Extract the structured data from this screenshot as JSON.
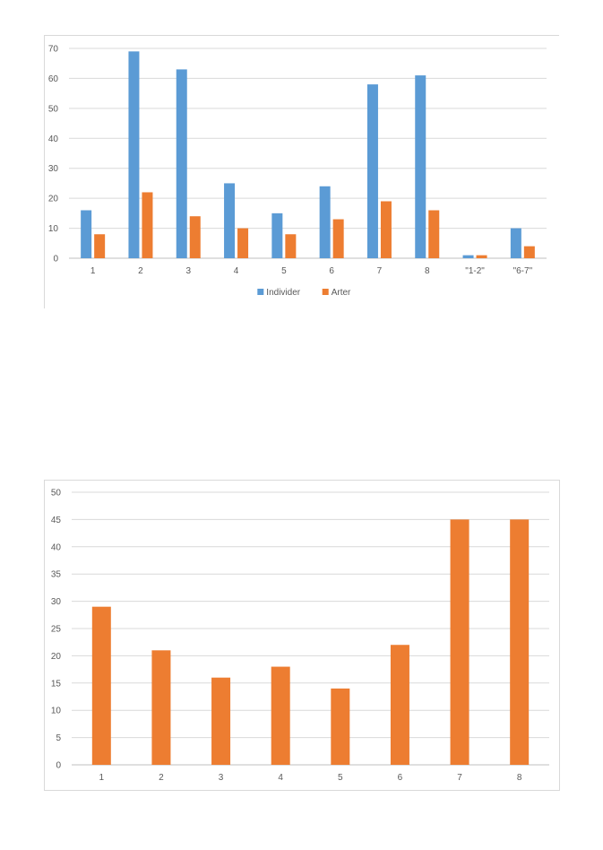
{
  "chart_data": [
    {
      "type": "bar",
      "categories": [
        "1",
        "2",
        "3",
        "4",
        "5",
        "6",
        "7",
        "8",
        "\"1-2\"",
        "\"6-7\""
      ],
      "series": [
        {
          "name": "Individer",
          "values": [
            16,
            69,
            63,
            25,
            15,
            24,
            58,
            61,
            1,
            10
          ],
          "color": "#5b9bd5"
        },
        {
          "name": "Arter",
          "values": [
            8,
            22,
            14,
            10,
            8,
            13,
            19,
            16,
            1,
            4
          ],
          "color": "#ed7d31"
        }
      ],
      "title": "",
      "xlabel": "",
      "ylabel": "",
      "ylim": [
        0,
        70
      ],
      "yticks": [
        0,
        10,
        20,
        30,
        40,
        50,
        60,
        70
      ],
      "grid": true,
      "legend": "bottom"
    },
    {
      "type": "bar",
      "categories": [
        "1",
        "2",
        "3",
        "4",
        "5",
        "6",
        "7",
        "8"
      ],
      "series": [
        {
          "values": [
            29,
            21,
            16,
            18,
            14,
            22,
            45,
            45
          ],
          "color": "#ed7d31"
        }
      ],
      "title": "",
      "xlabel": "",
      "ylabel": "",
      "ylim": [
        0,
        50
      ],
      "yticks": [
        0,
        5,
        10,
        15,
        20,
        25,
        30,
        35,
        40,
        45,
        50
      ],
      "grid": true,
      "legend": "none"
    }
  ]
}
